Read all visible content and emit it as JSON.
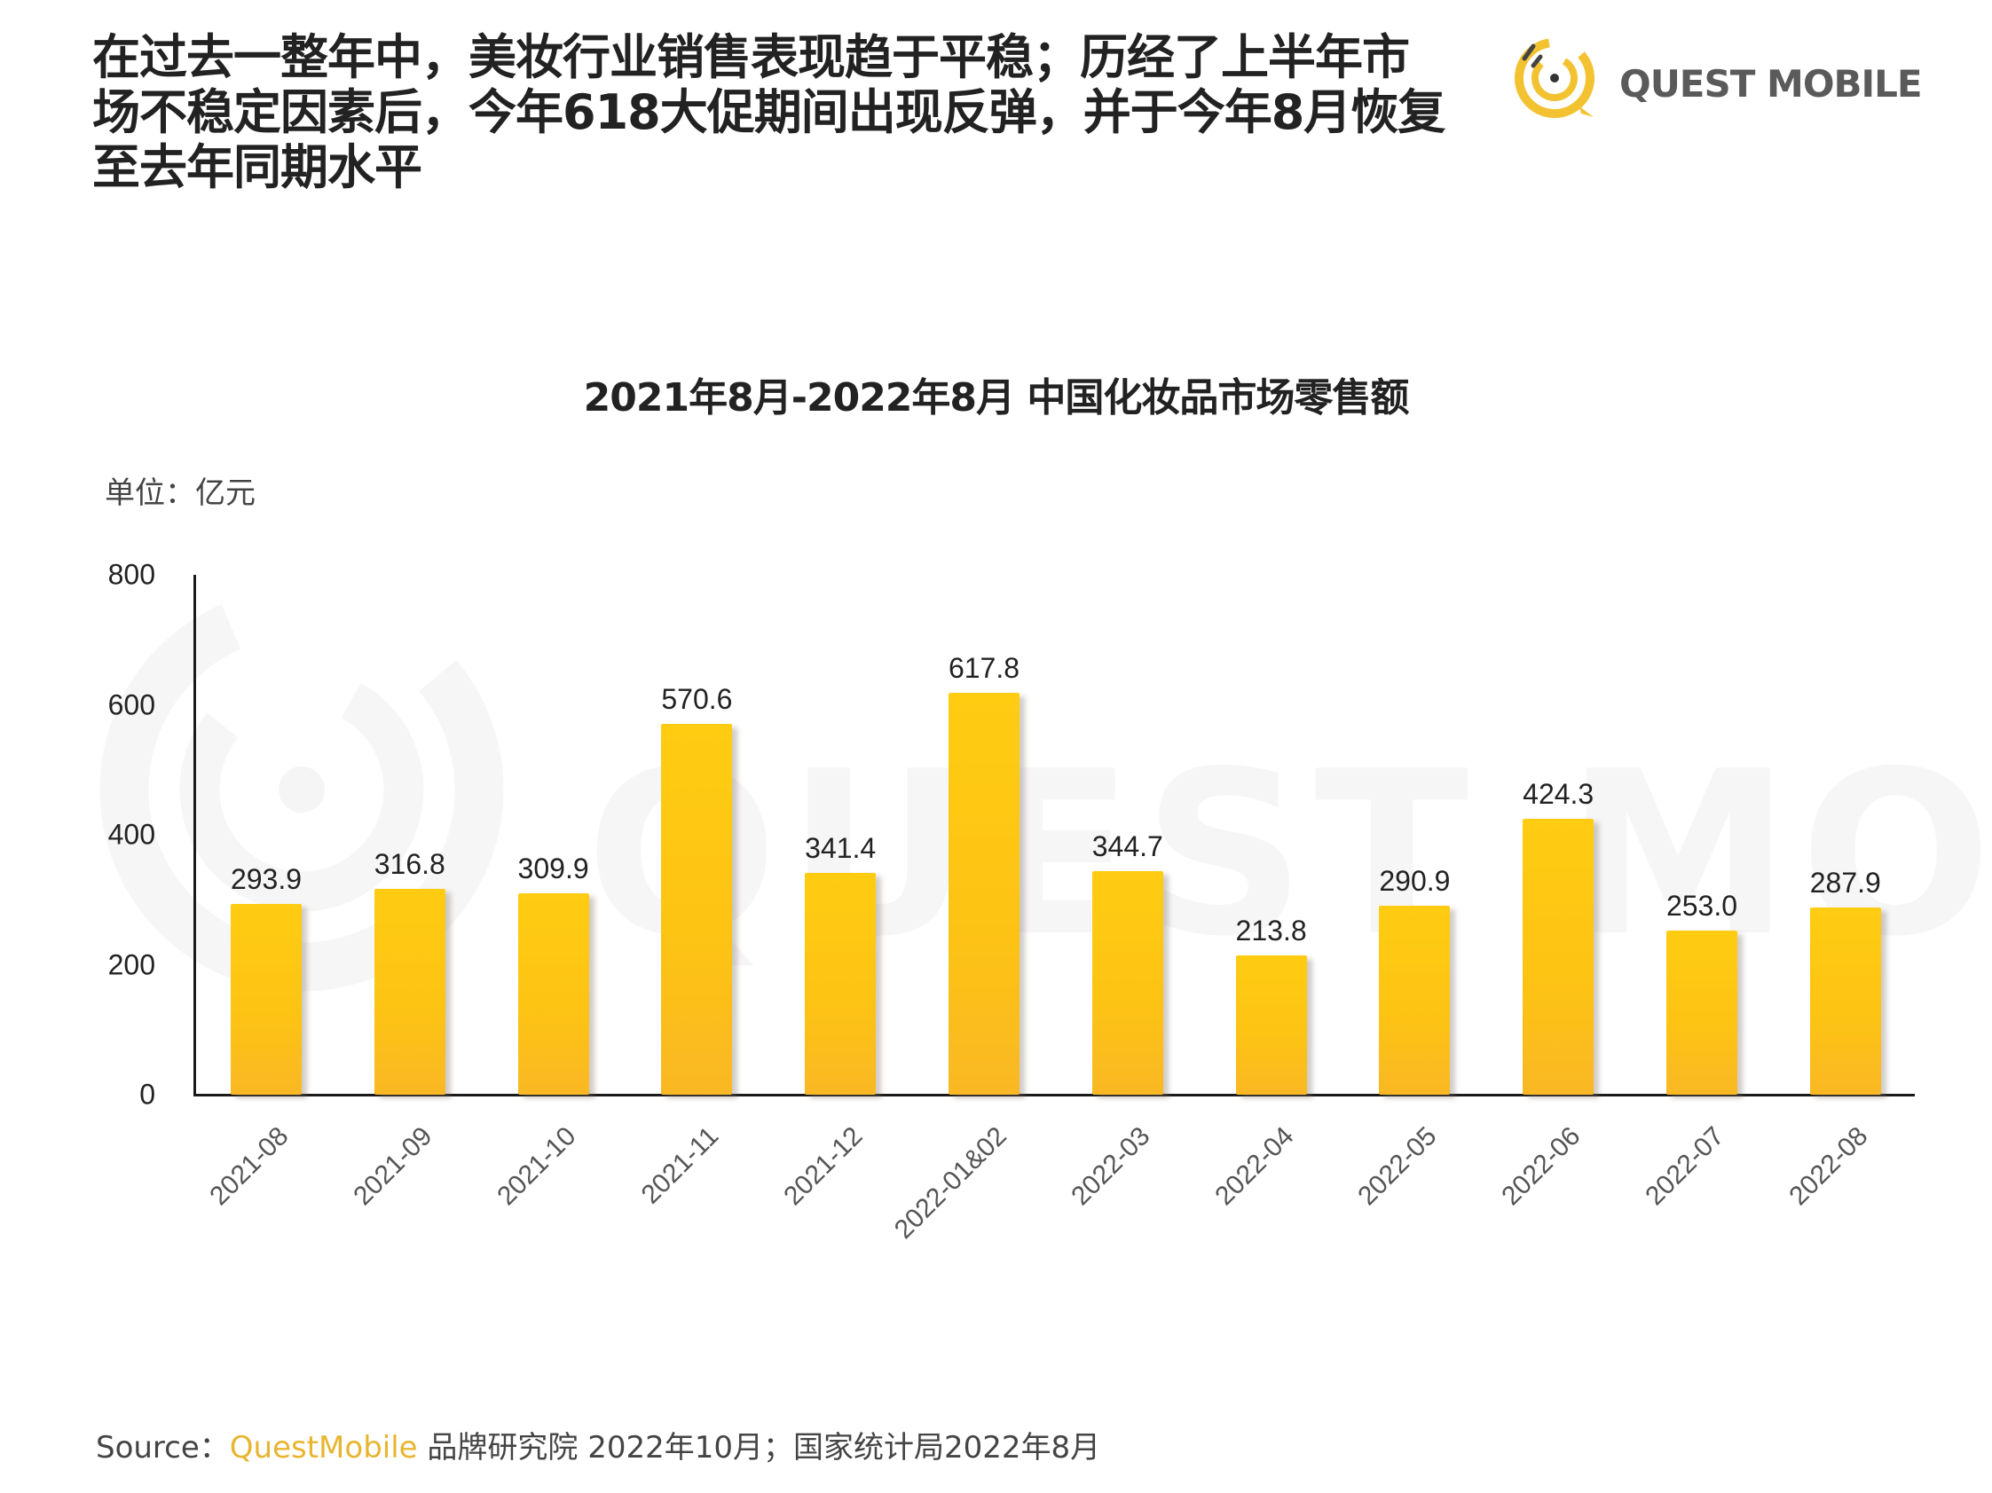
{
  "header": {
    "lines": [
      "在过去一整年中，美妆行业销售表现趋于平稳；历经了上半年市",
      "场不稳定因素后，今年618大促期间出现反弹，并于今年8月恢复",
      "至去年同期水平"
    ]
  },
  "logo": {
    "icon": "quest-mobile-logo-icon",
    "text": "QUEST MOBILE",
    "accent": "#f2c230"
  },
  "watermark": {
    "text": "QUEST MOBILE"
  },
  "chart_data": {
    "type": "bar",
    "title": "2021年8月-2022年8月 中国化妆品市场零售额",
    "unit_label": "单位：亿元",
    "xlabel": "",
    "ylabel": "亿元",
    "ylim": [
      0,
      800
    ],
    "yticks": [
      "800",
      "600",
      "400",
      "200",
      "0"
    ],
    "grid": false,
    "legend": null,
    "bar_color": "#fdc314",
    "categories": [
      "2021-08",
      "2021-09",
      "2021-10",
      "2021-11",
      "2021-12",
      "2022-01&02",
      "2022-03",
      "2022-04",
      "2022-05",
      "2022-06",
      "2022-07",
      "2022-08"
    ],
    "values": [
      293.9,
      316.8,
      309.9,
      570.6,
      341.4,
      617.8,
      344.7,
      213.8,
      290.9,
      424.3,
      253.0,
      287.9
    ],
    "value_labels": [
      "293.9",
      "316.8",
      "309.9",
      "570.6",
      "341.4",
      "617.8",
      "344.7",
      "213.8",
      "290.9",
      "424.3",
      "253.0",
      "287.9"
    ]
  },
  "source": {
    "prefix": "Source：",
    "brand": "QuestMobile",
    "rest": " 品牌研究院 2022年10月；国家统计局2022年8月"
  }
}
